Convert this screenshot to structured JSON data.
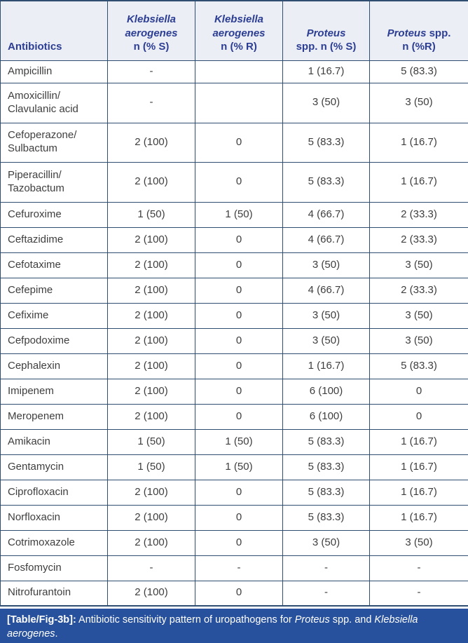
{
  "colors": {
    "header_bg": "#eceef5",
    "header_text": "#2c3e93",
    "grid_line": "#2e4d70",
    "body_text": "#3e3e3e",
    "caption_bg": "#27509d",
    "caption_text": "#ffffff"
  },
  "table": {
    "header": {
      "columns": [
        {
          "id": "antibiotics",
          "lines": [
            [
              {
                "t": "Antibiotics"
              }
            ]
          ]
        },
        {
          "id": "klebsiella-aerogenes-sensitive",
          "lines": [
            [
              {
                "t": "Klebsiella",
                "i": true
              }
            ],
            [
              {
                "t": "aerogenes",
                "i": true
              }
            ],
            [
              {
                "t": "n (% S)"
              }
            ]
          ]
        },
        {
          "id": "klebsiella-aerogenes-resistant",
          "lines": [
            [
              {
                "t": "Klebsiella",
                "i": true
              }
            ],
            [
              {
                "t": "aerogenes",
                "i": true
              }
            ],
            [
              {
                "t": "n (% R)"
              }
            ]
          ]
        },
        {
          "id": "proteus-sensitive",
          "lines": [
            [
              {
                "t": "Proteus",
                "i": true
              }
            ],
            [
              {
                "t": "spp. n (% S)"
              }
            ]
          ]
        },
        {
          "id": "proteus-resistant",
          "lines": [
            [
              {
                "t": "Proteus",
                "i": true
              },
              {
                "t": " spp."
              }
            ],
            [
              {
                "t": "n (%R)"
              }
            ]
          ]
        }
      ]
    },
    "rows": [
      {
        "name_lines": [
          "Ampicillin"
        ],
        "values": [
          "-",
          "",
          "1 (16.7)",
          "5 (83.3)"
        ]
      },
      {
        "name_lines": [
          "Amoxicillin/",
          "Clavulanic acid"
        ],
        "values": [
          "-",
          "",
          "3 (50)",
          "3 (50)"
        ]
      },
      {
        "name_lines": [
          "Cefoperazone/",
          "Sulbactum"
        ],
        "values": [
          "2 (100)",
          "0",
          "5 (83.3)",
          "1 (16.7)"
        ]
      },
      {
        "name_lines": [
          "Piperacillin/",
          "Tazobactum"
        ],
        "values": [
          "2 (100)",
          "0",
          "5 (83.3)",
          "1 (16.7)"
        ]
      },
      {
        "name_lines": [
          "Cefuroxime"
        ],
        "values": [
          "1 (50)",
          "1 (50)",
          "4 (66.7)",
          "2 (33.3)"
        ]
      },
      {
        "name_lines": [
          "Ceftazidime"
        ],
        "values": [
          "2 (100)",
          "0",
          "4 (66.7)",
          "2 (33.3)"
        ]
      },
      {
        "name_lines": [
          "Cefotaxime"
        ],
        "values": [
          "2 (100)",
          "0",
          "3 (50)",
          "3 (50)"
        ]
      },
      {
        "name_lines": [
          "Cefepime"
        ],
        "values": [
          "2 (100)",
          "0",
          "4 (66.7)",
          "2 (33.3)"
        ]
      },
      {
        "name_lines": [
          "Cefixime"
        ],
        "values": [
          "2 (100)",
          "0",
          "3 (50)",
          "3 (50)"
        ]
      },
      {
        "name_lines": [
          "Cefpodoxime"
        ],
        "values": [
          "2 (100)",
          "0",
          "3 (50)",
          "3 (50)"
        ]
      },
      {
        "name_lines": [
          "Cephalexin"
        ],
        "values": [
          "2 (100)",
          "0",
          "1 (16.7)",
          "5 (83.3)"
        ]
      },
      {
        "name_lines": [
          "Imipenem"
        ],
        "values": [
          "2 (100)",
          "0",
          "6 (100)",
          "0"
        ]
      },
      {
        "name_lines": [
          "Meropenem"
        ],
        "values": [
          "2 (100)",
          "0",
          "6 (100)",
          "0"
        ]
      },
      {
        "name_lines": [
          "Amikacin"
        ],
        "values": [
          "1 (50)",
          "1 (50)",
          "5 (83.3)",
          "1 (16.7)"
        ]
      },
      {
        "name_lines": [
          "Gentamycin"
        ],
        "values": [
          "1 (50)",
          "1 (50)",
          "5 (83.3)",
          "1 (16.7)"
        ]
      },
      {
        "name_lines": [
          "Ciprofloxacin"
        ],
        "values": [
          "2 (100)",
          "0",
          "5 (83.3)",
          "1 (16.7)"
        ]
      },
      {
        "name_lines": [
          "Norfloxacin"
        ],
        "values": [
          "2 (100)",
          "0",
          "5 (83.3)",
          "1 (16.7)"
        ]
      },
      {
        "name_lines": [
          "Cotrimoxazole"
        ],
        "values": [
          "2 (100)",
          "0",
          "3 (50)",
          "3 (50)"
        ]
      },
      {
        "name_lines": [
          "Fosfomycin"
        ],
        "values": [
          "-",
          "-",
          "-",
          "-"
        ]
      },
      {
        "name_lines": [
          "Nitrofurantoin"
        ],
        "values": [
          "2 (100)",
          "0",
          "-",
          "-"
        ]
      }
    ]
  },
  "caption": {
    "segments": [
      {
        "t": "[Table/Fig-3b]:",
        "b": true
      },
      {
        "t": " Antibiotic sensitivity pattern of uropathogens for "
      },
      {
        "t": "Proteus",
        "i": true
      },
      {
        "t": " spp. and "
      },
      {
        "t": "Klebsiella aerogenes",
        "i": true
      },
      {
        "t": "."
      }
    ]
  }
}
